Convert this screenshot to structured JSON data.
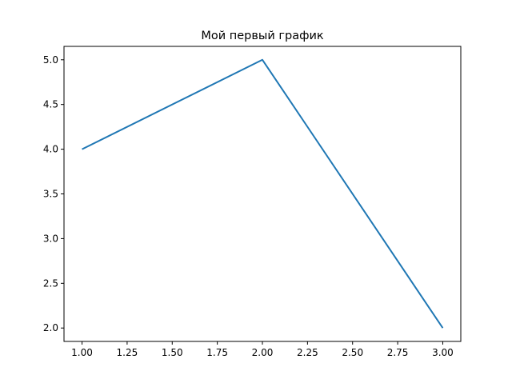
{
  "chart_data": {
    "type": "line",
    "title": "Мой первый график",
    "xlabel": "",
    "ylabel": "",
    "xlim": [
      0.9,
      3.1
    ],
    "ylim": [
      1.85,
      5.15
    ],
    "grid": false,
    "x_ticks": [
      "1.00",
      "1.25",
      "1.50",
      "1.75",
      "2.00",
      "2.25",
      "2.50",
      "2.75",
      "3.00"
    ],
    "y_ticks": [
      "2.0",
      "2.5",
      "3.0",
      "3.5",
      "4.0",
      "4.5",
      "5.0"
    ],
    "series": [
      {
        "color": "#1f77b4",
        "x": [
          1,
          2,
          3
        ],
        "y": [
          4,
          5,
          2
        ]
      }
    ]
  }
}
